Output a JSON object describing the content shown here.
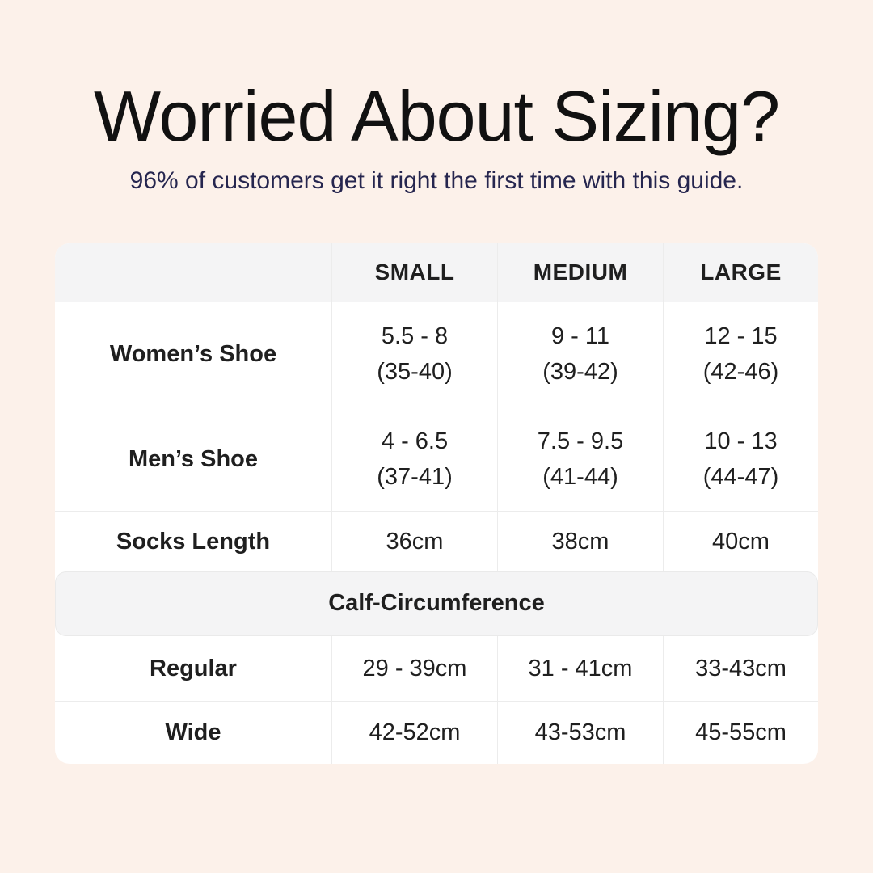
{
  "colors": {
    "background": "#fcf1ea",
    "card_bg": "#ffffff",
    "band_bg": "#f4f4f5",
    "border": "#ececec",
    "title": "#111111",
    "subtitle": "#26264f",
    "text": "#1f1f1f"
  },
  "chart_data": {
    "type": "table",
    "title": "Worried About Sizing?",
    "subtitle": "96% of customers get it right the first time with this guide.",
    "columns": [
      "",
      "SMALL",
      "MEDIUM",
      "LARGE"
    ],
    "rows": [
      {
        "label": "Women’s Shoe",
        "cells": [
          {
            "line1": "5.5 - 8",
            "line2": "(35-40)"
          },
          {
            "line1": "9 - 11",
            "line2": "(39-42)"
          },
          {
            "line1": "12 - 15",
            "line2": "(42-46)"
          }
        ]
      },
      {
        "label": "Men’s Shoe",
        "cells": [
          {
            "line1": "4 - 6.5",
            "line2": "(37-41)"
          },
          {
            "line1": "7.5 - 9.5",
            "line2": "(41-44)"
          },
          {
            "line1": "10 - 13",
            "line2": "(44-47)"
          }
        ]
      },
      {
        "label": "Socks Length",
        "cells": [
          {
            "line1": "36cm"
          },
          {
            "line1": "38cm"
          },
          {
            "line1": "40cm"
          }
        ]
      }
    ],
    "section_header": "Calf-Circumference",
    "section_rows": [
      {
        "label": "Regular",
        "cells": [
          {
            "line1": "29 - 39cm"
          },
          {
            "line1": "31 - 41cm"
          },
          {
            "line1": "33-43cm"
          }
        ]
      },
      {
        "label": "Wide",
        "cells": [
          {
            "line1": "42-52cm"
          },
          {
            "line1": "43-53cm"
          },
          {
            "line1": "45-55cm"
          }
        ]
      }
    ]
  }
}
